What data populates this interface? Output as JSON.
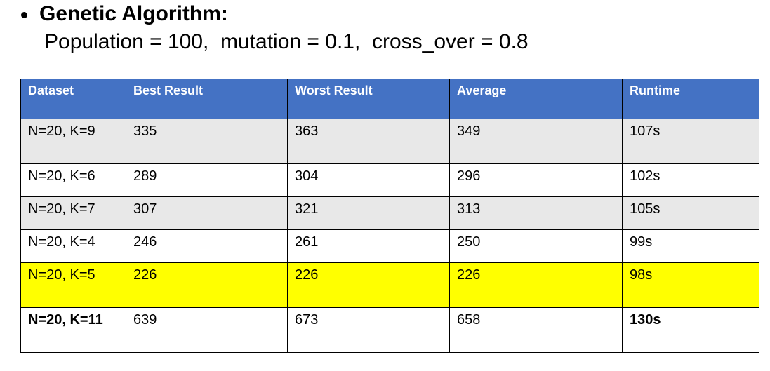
{
  "heading": {
    "title": "Genetic Algorithm:",
    "params": "Population = 100,  mutation = 0.1,  cross_over = 0.8"
  },
  "table": {
    "columns": [
      "Dataset",
      "Best Result",
      "Worst Result",
      "Average",
      "Runtime"
    ],
    "rows": [
      {
        "dataset": "N=20, K=9",
        "best": "335",
        "worst": "363",
        "average": "349",
        "runtime": "107s"
      },
      {
        "dataset": "N=20, K=6",
        "best": "289",
        "worst": "304",
        "average": "296",
        "runtime": "102s"
      },
      {
        "dataset": "N=20, K=7",
        "best": "307",
        "worst": "321",
        "average": "313",
        "runtime": "105s"
      },
      {
        "dataset": "N=20, K=4",
        "best": "246",
        "worst": "261",
        "average": "250",
        "runtime": "99s"
      },
      {
        "dataset": "N=20, K=5",
        "best": "226",
        "worst": "226",
        "average": "226",
        "runtime": "98s"
      },
      {
        "dataset": "N=20, K=11",
        "best": "639",
        "worst": "673",
        "average": "658",
        "runtime": "130s"
      }
    ]
  },
  "colors": {
    "header_bg": "#4472c4",
    "header_text": "#ffffff",
    "row_shade": "#e8e8e8",
    "highlight_row": "#ffff00"
  }
}
